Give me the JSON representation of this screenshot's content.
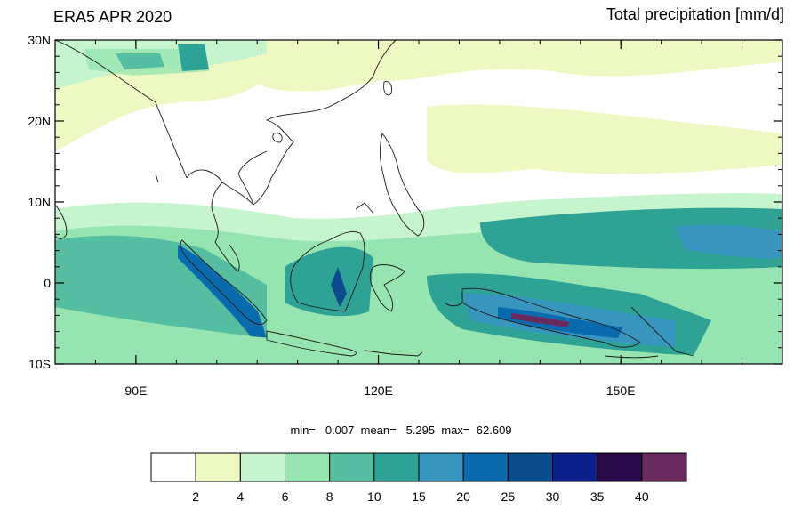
{
  "title_left": "ERA5 APR 2020",
  "title_right": "Total precipitation [mm/d]",
  "y_ticks": [
    {
      "value": 30,
      "label": "30N"
    },
    {
      "value": 20,
      "label": "20N"
    },
    {
      "value": 10,
      "label": "10N"
    },
    {
      "value": 0,
      "label": "0"
    },
    {
      "value": -10,
      "label": "10S"
    }
  ],
  "x_ticks": [
    {
      "value": 90,
      "label": "90E"
    },
    {
      "value": 120,
      "label": "120E"
    },
    {
      "value": 150,
      "label": "150E"
    }
  ],
  "stats": {
    "min_label": "min=",
    "min": "0.007",
    "mean_label": "mean=",
    "mean": "5.295",
    "max_label": "max=",
    "max": "62.609"
  },
  "colorbar": {
    "colors": [
      "#ffffff",
      "#edf8c2",
      "#c6f4cc",
      "#96e5b0",
      "#56bea0",
      "#2fa296",
      "#3896be",
      "#0a6aae",
      "#0b4c8c",
      "#0c1f8c",
      "#2a0a4a",
      "#6a2a5e"
    ],
    "labels": [
      "2",
      "4",
      "6",
      "8",
      "10",
      "15",
      "20",
      "25",
      "30",
      "35",
      "40"
    ]
  },
  "map": {
    "lon_range": [
      80,
      170
    ],
    "lat_range": [
      -10,
      30
    ],
    "precip_features": [
      {
        "kind": "band",
        "lat": -1,
        "lon": [
          80,
          170
        ],
        "width": 14,
        "level": 7
      },
      {
        "kind": "band",
        "lat": 6,
        "lon": [
          125,
          170
        ],
        "width": 6,
        "level": 9
      },
      {
        "kind": "band",
        "lat": -2,
        "lon": [
          93,
          106
        ],
        "width": 3,
        "level": 11
      },
      {
        "kind": "band",
        "lat": -4,
        "lon": [
          134,
          150
        ],
        "width": 3,
        "level": 12
      },
      {
        "kind": "band",
        "lat": 27,
        "lon": [
          80,
          120
        ],
        "width": 8,
        "level": 3
      },
      {
        "kind": "band",
        "lat": 25,
        "lon": [
          120,
          170
        ],
        "width": 5,
        "level": 4
      }
    ]
  }
}
